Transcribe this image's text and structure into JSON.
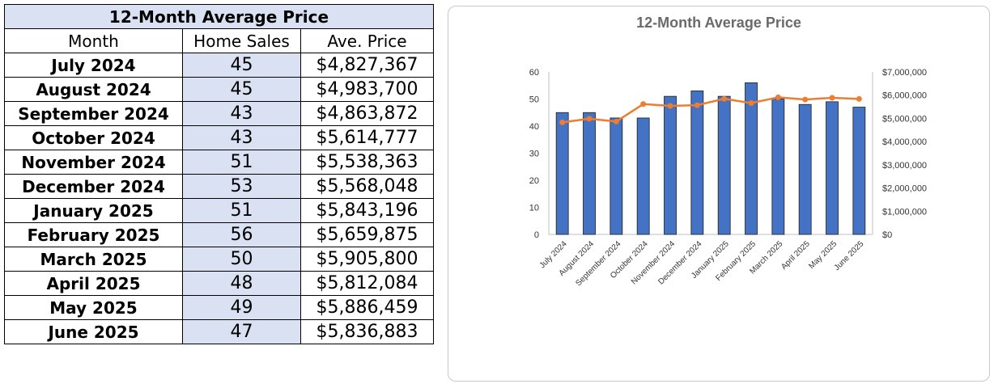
{
  "table": {
    "title": "12-Month Average Price",
    "headers": {
      "month": "Month",
      "sales": "Home Sales",
      "price": "Ave. Price"
    },
    "rows": [
      {
        "month": "July 2024",
        "sales": "45",
        "price": "$4,827,367"
      },
      {
        "month": "August 2024",
        "sales": "45",
        "price": "$4,983,700"
      },
      {
        "month": "September 2024",
        "sales": "43",
        "price": "$4,863,872"
      },
      {
        "month": "October 2024",
        "sales": "43",
        "price": "$5,614,777"
      },
      {
        "month": "November 2024",
        "sales": "51",
        "price": "$5,538,363"
      },
      {
        "month": "December 2024",
        "sales": "53",
        "price": "$5,568,048"
      },
      {
        "month": "January 2025",
        "sales": "51",
        "price": "$5,843,196"
      },
      {
        "month": "February 2025",
        "sales": "56",
        "price": "$5,659,875"
      },
      {
        "month": "March 2025",
        "sales": "50",
        "price": "$5,905,800"
      },
      {
        "month": "April 2025",
        "sales": "48",
        "price": "$5,812,084"
      },
      {
        "month": "May 2025",
        "sales": "49",
        "price": "$5,886,459"
      },
      {
        "month": "June 2025",
        "sales": "47",
        "price": "$5,836,883"
      }
    ],
    "colors": {
      "title_fill": "#d9e1f2",
      "sales_fill": "#d9e1f2",
      "border": "#000000"
    }
  },
  "chart_data": {
    "type": "bar",
    "title": "12-Month Average Price",
    "categories": [
      "July 2024",
      "August 2024",
      "September 2024",
      "October 2024",
      "November 2024",
      "December 2024",
      "January 2025",
      "February 2025",
      "March 2025",
      "April 2025",
      "May 2025",
      "June 2025"
    ],
    "series": [
      {
        "type": "bar",
        "axis": "left",
        "color": "#4472c4",
        "values": [
          45,
          45,
          43,
          43,
          51,
          53,
          51,
          56,
          50,
          48,
          49,
          47
        ]
      },
      {
        "type": "line",
        "axis": "right",
        "color": "#ed7d31",
        "marker": "circle",
        "values": [
          4827367,
          4983700,
          4863872,
          5614777,
          5538363,
          5568048,
          5843196,
          5659875,
          5905800,
          5812084,
          5886459,
          5836883
        ]
      }
    ],
    "ylim": [
      0,
      60
    ],
    "y_ticks": [
      "0",
      "10",
      "20",
      "30",
      "40",
      "50",
      "60"
    ],
    "y2lim": [
      0,
      7000000
    ],
    "y2_ticks": [
      "$0",
      "$1,000,000",
      "$2,000,000",
      "$3,000,000",
      "$4,000,000",
      "$5,000,000",
      "$6,000,000",
      "$7,000,000"
    ],
    "xlabel": "",
    "ylabel": "",
    "y2label": "",
    "grid": false,
    "legend": "none",
    "x_tick_rotation": "diagonal"
  }
}
